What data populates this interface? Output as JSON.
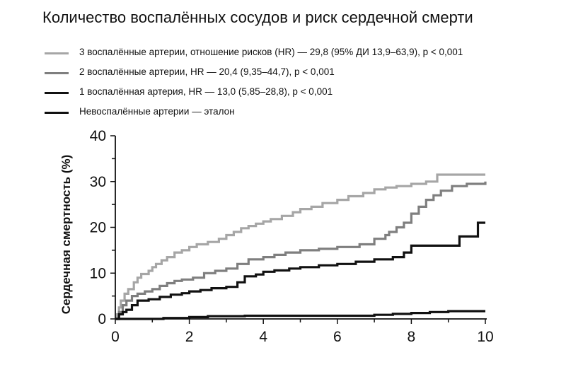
{
  "chart_data": {
    "type": "line",
    "title": "Количество воспалённых сосудов и риск сердечной смерти",
    "xlabel": "",
    "ylabel": "Сердечная смертность (%)",
    "xlim": [
      0,
      10
    ],
    "ylim": [
      0,
      40
    ],
    "xticks": [
      "0",
      "2",
      "4",
      "6",
      "8",
      "10"
    ],
    "yticks": [
      "0",
      "10",
      "20",
      "30",
      "40"
    ],
    "grid": false,
    "legend_placement": "top-left",
    "series": [
      {
        "name": "3 воспалённые артерии, отношение рисков (HR) — 29,8 (95% ДИ 13,9–63,9), p < 0,001",
        "color": "#a6a6a6",
        "width": 3.2,
        "points": [
          [
            0,
            0
          ],
          [
            0.05,
            1
          ],
          [
            0.1,
            2.5
          ],
          [
            0.15,
            4
          ],
          [
            0.25,
            5.5
          ],
          [
            0.35,
            6.5
          ],
          [
            0.5,
            8
          ],
          [
            0.6,
            9
          ],
          [
            0.7,
            9.8
          ],
          [
            0.9,
            10.5
          ],
          [
            1.0,
            11.3
          ],
          [
            1.1,
            12
          ],
          [
            1.25,
            12.8
          ],
          [
            1.4,
            13.5
          ],
          [
            1.6,
            14.5
          ],
          [
            1.8,
            15
          ],
          [
            2.0,
            15.7
          ],
          [
            2.2,
            16.3
          ],
          [
            2.5,
            16.8
          ],
          [
            2.8,
            17.5
          ],
          [
            3.0,
            18.3
          ],
          [
            3.2,
            19
          ],
          [
            3.4,
            19.8
          ],
          [
            3.6,
            20.3
          ],
          [
            3.8,
            20.8
          ],
          [
            4.0,
            21.3
          ],
          [
            4.2,
            21.8
          ],
          [
            4.5,
            22.5
          ],
          [
            4.8,
            23.3
          ],
          [
            5.0,
            24
          ],
          [
            5.3,
            24.5
          ],
          [
            5.6,
            25.3
          ],
          [
            6.0,
            26
          ],
          [
            6.3,
            26.8
          ],
          [
            6.7,
            27.5
          ],
          [
            7.0,
            28.3
          ],
          [
            7.3,
            28.7
          ],
          [
            7.6,
            29
          ],
          [
            8.0,
            29.5
          ],
          [
            8.4,
            30
          ],
          [
            8.7,
            31.5
          ],
          [
            9.0,
            31.5
          ],
          [
            9.5,
            31.5
          ],
          [
            10.0,
            31.5
          ]
        ]
      },
      {
        "name": "2 воспалённые артерии, HR — 20,4 (9,35–44,7), p < 0,001",
        "color": "#7f7f7f",
        "width": 3.2,
        "points": [
          [
            0,
            0
          ],
          [
            0.1,
            1.5
          ],
          [
            0.2,
            3
          ],
          [
            0.3,
            4
          ],
          [
            0.45,
            5
          ],
          [
            0.6,
            5.5
          ],
          [
            0.8,
            6
          ],
          [
            1.0,
            6.5
          ],
          [
            1.2,
            7.2
          ],
          [
            1.4,
            7.8
          ],
          [
            1.6,
            8.3
          ],
          [
            1.8,
            8.6
          ],
          [
            2.1,
            9
          ],
          [
            2.4,
            10
          ],
          [
            2.7,
            10.5
          ],
          [
            3.0,
            11
          ],
          [
            3.3,
            12
          ],
          [
            3.6,
            13
          ],
          [
            4.0,
            13.5
          ],
          [
            4.3,
            14
          ],
          [
            4.6,
            14.5
          ],
          [
            5.0,
            15
          ],
          [
            5.5,
            15.3
          ],
          [
            6.0,
            15.7
          ],
          [
            6.6,
            16.3
          ],
          [
            7.0,
            17.5
          ],
          [
            7.3,
            18.3
          ],
          [
            7.4,
            19
          ],
          [
            7.6,
            20
          ],
          [
            7.8,
            21
          ],
          [
            8.0,
            23
          ],
          [
            8.2,
            24.5
          ],
          [
            8.4,
            26
          ],
          [
            8.6,
            27
          ],
          [
            8.8,
            28
          ],
          [
            9.1,
            29
          ],
          [
            9.5,
            29.5
          ],
          [
            10.0,
            30
          ]
        ]
      },
      {
        "name": "1 воспалённая артерия, HR — 13,0 (5,85–28,8), p < 0,001",
        "color": "#111111",
        "width": 3.2,
        "points": [
          [
            0,
            0
          ],
          [
            0.1,
            1
          ],
          [
            0.2,
            1.5
          ],
          [
            0.3,
            2
          ],
          [
            0.45,
            3
          ],
          [
            0.6,
            4
          ],
          [
            0.9,
            4.3
          ],
          [
            1.2,
            4.8
          ],
          [
            1.5,
            5.3
          ],
          [
            1.8,
            5.6
          ],
          [
            2.0,
            6
          ],
          [
            2.3,
            6.3
          ],
          [
            2.6,
            6.7
          ],
          [
            3.0,
            7
          ],
          [
            3.3,
            8
          ],
          [
            3.5,
            9.3
          ],
          [
            3.8,
            9.7
          ],
          [
            4.0,
            10.3
          ],
          [
            4.3,
            10.6
          ],
          [
            4.7,
            11
          ],
          [
            5.0,
            11.3
          ],
          [
            5.5,
            11.7
          ],
          [
            6.0,
            12
          ],
          [
            6.5,
            12.5
          ],
          [
            7.0,
            13
          ],
          [
            7.5,
            13.5
          ],
          [
            7.8,
            14.5
          ],
          [
            8.0,
            16
          ],
          [
            8.5,
            16
          ],
          [
            8.8,
            16
          ],
          [
            9.3,
            18
          ],
          [
            9.6,
            18
          ],
          [
            9.8,
            21
          ],
          [
            10.0,
            21
          ]
        ]
      },
      {
        "name": "Невоспалённые артерии — эталон",
        "color": "#111111",
        "width": 3.2,
        "points": [
          [
            0,
            0
          ],
          [
            1.0,
            0
          ],
          [
            1.3,
            0.2
          ],
          [
            2.0,
            0.4
          ],
          [
            2.5,
            0.6
          ],
          [
            3.5,
            0.7
          ],
          [
            5.0,
            0.7
          ],
          [
            6.0,
            0.7
          ],
          [
            7.0,
            0.9
          ],
          [
            7.5,
            1.1
          ],
          [
            8.0,
            1.3
          ],
          [
            8.5,
            1.5
          ],
          [
            9.0,
            1.7
          ],
          [
            10.0,
            1.7
          ]
        ]
      }
    ]
  }
}
